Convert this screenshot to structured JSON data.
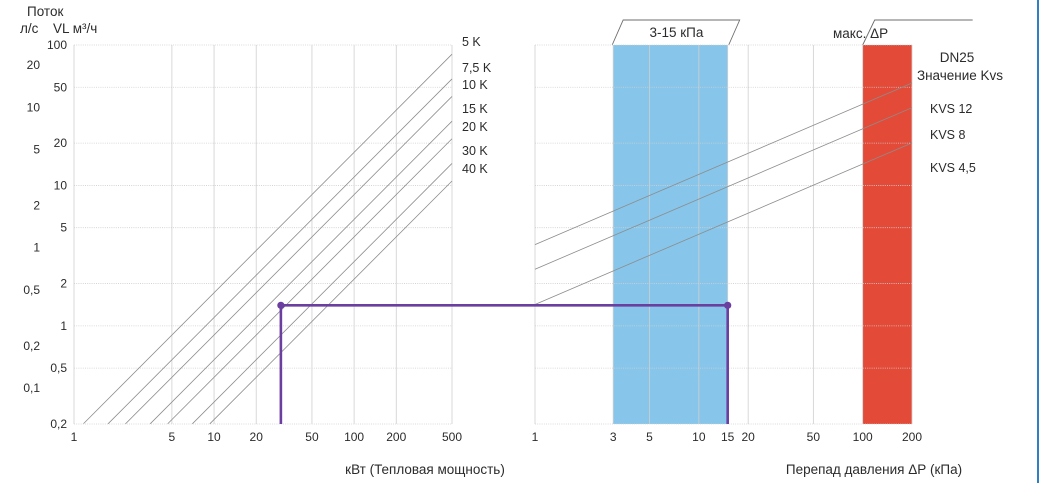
{
  "chart_data": [
    {
      "id": "power",
      "type": "line",
      "x_scale": "log",
      "y_scale": "log",
      "xlabel": "кВт (Тепловая мощность)",
      "x_ticks": [
        1,
        5,
        10,
        20,
        50,
        100,
        200,
        500
      ],
      "x_range": [
        1,
        500
      ],
      "grid": true,
      "series": [
        {
          "name": "5 K",
          "x": [
            1.17,
            500
          ]
        },
        {
          "name": "7,5 K",
          "x": [
            1.75,
            500
          ]
        },
        {
          "name": "10 K",
          "x": [
            2.33,
            500
          ]
        },
        {
          "name": "15 K",
          "x": [
            3.5,
            500
          ]
        },
        {
          "name": "20 K",
          "x": [
            4.67,
            500
          ]
        },
        {
          "name": "30 K",
          "x": [
            7.0,
            500
          ]
        },
        {
          "name": "40 K",
          "x": [
            9.33,
            500
          ]
        }
      ]
    },
    {
      "id": "pressure",
      "type": "line",
      "x_scale": "log",
      "xlabel": "Перепад давления ΔР (кПа)",
      "x_ticks": [
        1,
        3,
        5,
        10,
        15,
        20,
        50,
        100,
        200
      ],
      "x_range": [
        1,
        200
      ],
      "title": "DN25",
      "subtitle": "Значение Kvs",
      "grid": true,
      "series": [
        {
          "name": "KVS 12",
          "flow_m3h_at_1kPa": 3.79
        },
        {
          "name": "KVS 8",
          "flow_m3h_at_1kPa": 2.53
        },
        {
          "name": "KVS 4,5",
          "flow_m3h_at_1kPa": 1.42
        }
      ],
      "bands": [
        {
          "label": "3-15 кПа",
          "from": 3,
          "to": 15,
          "color": "#87c6ea"
        },
        {
          "label": "макс. ΔР",
          "from": 100,
          "to": 200,
          "color": "#e44a38"
        }
      ]
    }
  ],
  "left_axis": {
    "title_line1": "Поток",
    "title_unit_ls": "л/с",
    "title_unit_m3h": "VL м³/ч",
    "ls_ticks": [
      "20",
      "10",
      "5",
      "2",
      "1",
      "0,5",
      "0,2",
      "0,1"
    ],
    "m3h_ticks": [
      "100",
      "50",
      "20",
      "10",
      "5",
      "2",
      "1",
      "0,5",
      "0,2"
    ]
  },
  "example": {
    "power_kw": 30,
    "pressure_kpa": 15,
    "flow_m3h": 1.4,
    "color": "#6b3fa0"
  }
}
